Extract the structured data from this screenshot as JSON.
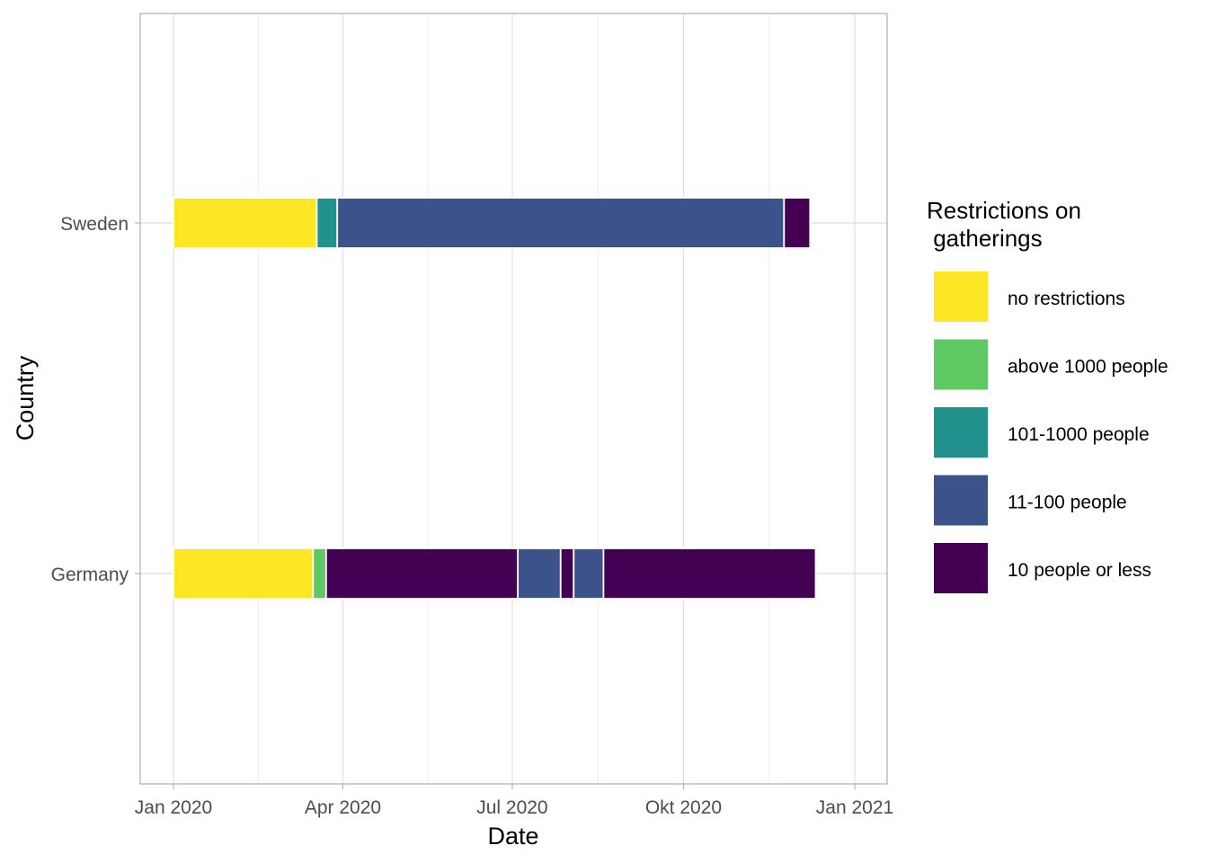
{
  "chart_data": {
    "type": "bar",
    "orientation": "horizontal",
    "subtype": "timeline",
    "xlabel": "Date",
    "ylabel": "Country",
    "x_ticks": [
      {
        "date": "2020-01-01",
        "label": "Jan 2020"
      },
      {
        "date": "2020-04-01",
        "label": "Apr 2020"
      },
      {
        "date": "2020-07-01",
        "label": "Jul 2020"
      },
      {
        "date": "2020-10-01",
        "label": "Okt 2020"
      },
      {
        "date": "2021-01-01",
        "label": "Jan 2021"
      }
    ],
    "xlim": [
      "2019-12-20",
      "2021-01-10"
    ],
    "grid": true,
    "categories": [
      "Germany",
      "Sweden"
    ],
    "legend": {
      "title_lines": [
        "Restrictions on",
        " gatherings"
      ],
      "position": "right",
      "items": [
        {
          "label": "no restrictions",
          "color": "#FDE725"
        },
        {
          "label": "above 1000 people",
          "color": "#5EC962"
        },
        {
          "label": "101-1000 people",
          "color": "#21918C"
        },
        {
          "label": "11-100 people",
          "color": "#3B528B"
        },
        {
          "label": "10 people or less",
          "color": "#440154"
        }
      ]
    },
    "series": [
      {
        "country": "Sweden",
        "segments": [
          {
            "start": "2020-01-01",
            "end": "2020-03-18",
            "level": "no restrictions"
          },
          {
            "start": "2020-03-18",
            "end": "2020-03-29",
            "level": "101-1000 people"
          },
          {
            "start": "2020-03-29",
            "end": "2020-11-24",
            "level": "11-100 people"
          },
          {
            "start": "2020-11-24",
            "end": "2020-12-08",
            "level": "10 people or less"
          }
        ]
      },
      {
        "country": "Germany",
        "segments": [
          {
            "start": "2020-01-01",
            "end": "2020-03-16",
            "level": "no restrictions"
          },
          {
            "start": "2020-03-16",
            "end": "2020-03-23",
            "level": "above 1000 people"
          },
          {
            "start": "2020-03-23",
            "end": "2020-07-04",
            "level": "10 people or less"
          },
          {
            "start": "2020-07-04",
            "end": "2020-07-27",
            "level": "11-100 people"
          },
          {
            "start": "2020-07-27",
            "end": "2020-08-03",
            "level": "10 people or less"
          },
          {
            "start": "2020-08-03",
            "end": "2020-08-19",
            "level": "11-100 people"
          },
          {
            "start": "2020-08-19",
            "end": "2020-12-11",
            "level": "10 people or less"
          }
        ]
      }
    ]
  }
}
